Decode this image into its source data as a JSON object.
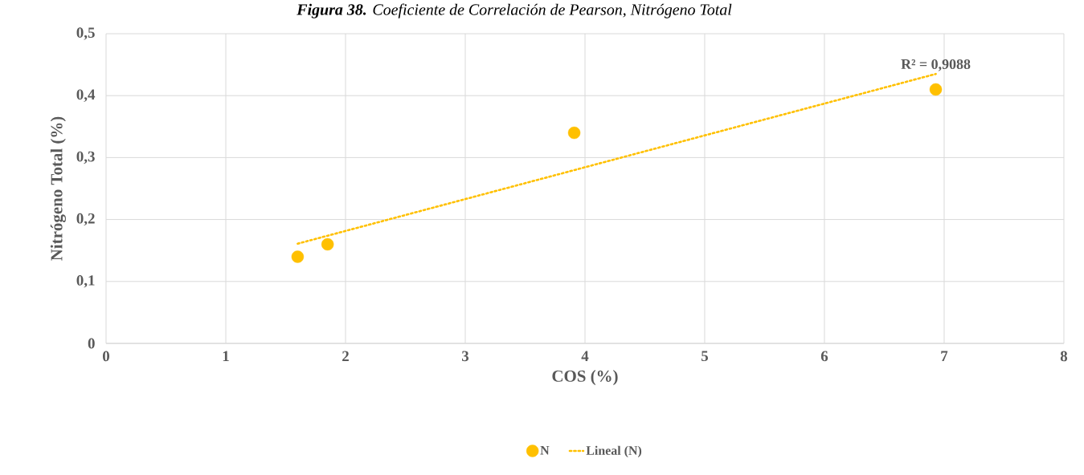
{
  "chart_data": {
    "type": "scatter",
    "title": "**Figura 38.** Coeficiente de Correlación de Pearson, Nitrógeno Total",
    "xlabel": "COS (%)",
    "ylabel": "Nitrógeno Total (%)",
    "series": [
      {
        "name": "N",
        "type": "scatter",
        "color": "#ffc000",
        "x": [
          1.6,
          1.85,
          3.91,
          6.93
        ],
        "values": [
          0.14,
          0.16,
          0.34,
          0.41
        ]
      },
      {
        "name": "Lineal (N)",
        "type": "line",
        "color": "#ffc000",
        "line_style": "dotted",
        "marker": "none",
        "x": [
          1.6,
          6.93
        ],
        "values": [
          0.161,
          0.435
        ]
      }
    ],
    "xlim": [
      0,
      8
    ],
    "ylim": [
      0,
      0.5
    ],
    "xticks": [
      0,
      1,
      2,
      3,
      4,
      5,
      6,
      7,
      8
    ],
    "yticks": [
      0,
      {
        "value": 0.1,
        "label": "0,1"
      },
      {
        "value": 0.2,
        "label": "0,2"
      },
      {
        "value": 0.3,
        "label": "0,3"
      },
      {
        "value": 0.4,
        "label": "0,4"
      },
      {
        "value": 0.5,
        "label": "0,5"
      }
    ],
    "annotations": [
      {
        "text": "R² = 0,9088",
        "x": 6.93,
        "y": 0.435
      }
    ],
    "grid": true,
    "legend": "bottom",
    "marker": "circle"
  }
}
